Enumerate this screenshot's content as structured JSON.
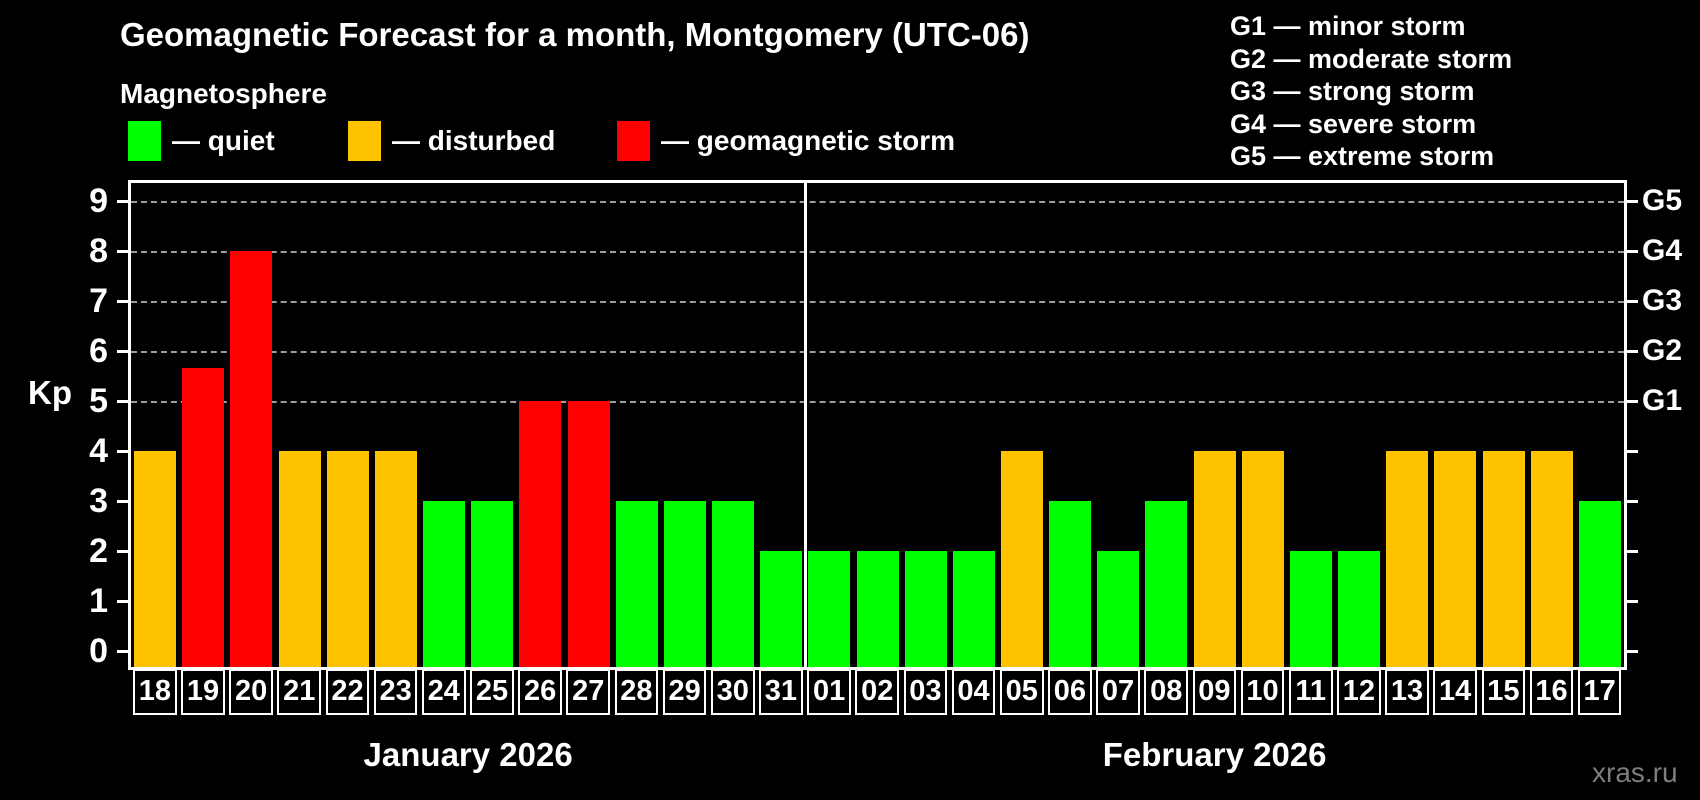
{
  "title": "Geomagnetic Forecast for a month, Montgomery (UTC-06)",
  "subtitle": "Magnetosphere",
  "legend": {
    "items": [
      {
        "key": "quiet",
        "label": "— quiet",
        "color": "#00ff00"
      },
      {
        "key": "disturbed",
        "label": "— disturbed",
        "color": "#ffc200"
      },
      {
        "key": "storm",
        "label": "— geomagnetic storm",
        "color": "#ff0000"
      }
    ]
  },
  "g_legend": [
    "G1 — minor storm",
    "G2 — moderate storm",
    "G3 — strong storm",
    "G4 — severe storm",
    "G5 — extreme storm"
  ],
  "axes": {
    "y_label": "Kp",
    "y_ticks": [
      0,
      1,
      2,
      3,
      4,
      5,
      6,
      7,
      8,
      9
    ],
    "right_labels": [
      {
        "label": "G1",
        "kp": 5
      },
      {
        "label": "G2",
        "kp": 6
      },
      {
        "label": "G3",
        "kp": 7
      },
      {
        "label": "G4",
        "kp": 8
      },
      {
        "label": "G5",
        "kp": 9
      }
    ]
  },
  "watermark": "xras.ru",
  "colors": {
    "background": "#000000",
    "text": "#ffffff",
    "grid": "#9e9e9e",
    "watermark": "#7e7e7e",
    "quiet": "#00ff00",
    "disturbed": "#ffc200",
    "storm": "#ff0000"
  },
  "chart_data": {
    "type": "bar",
    "title": "Geomagnetic Forecast for a month, Montgomery (UTC-06)",
    "xlabel": "",
    "ylabel": "Kp",
    "ylim": [
      0,
      9
    ],
    "grid": "dashed horizontal at Kp 5-9 (G1-G5 storm levels)",
    "legend_position": "top",
    "months": [
      {
        "label": "January 2026",
        "days": 14
      },
      {
        "label": "February 2026",
        "days": 17
      }
    ],
    "categories": [
      "18",
      "19",
      "20",
      "21",
      "22",
      "23",
      "24",
      "25",
      "26",
      "27",
      "28",
      "29",
      "30",
      "31",
      "01",
      "02",
      "03",
      "04",
      "05",
      "06",
      "07",
      "08",
      "09",
      "10",
      "11",
      "12",
      "13",
      "14",
      "15",
      "16",
      "17"
    ],
    "values": [
      4,
      5.67,
      8,
      4,
      4,
      4,
      3,
      3,
      5,
      5,
      3,
      3,
      3,
      2,
      2,
      2,
      2,
      2,
      4,
      3,
      2,
      3,
      4,
      4,
      2,
      2,
      4,
      4,
      4,
      4,
      3
    ],
    "statuses": [
      "disturbed",
      "storm",
      "storm",
      "disturbed",
      "disturbed",
      "disturbed",
      "quiet",
      "quiet",
      "storm",
      "storm",
      "quiet",
      "quiet",
      "quiet",
      "quiet",
      "quiet",
      "quiet",
      "quiet",
      "quiet",
      "disturbed",
      "quiet",
      "quiet",
      "quiet",
      "disturbed",
      "disturbed",
      "quiet",
      "quiet",
      "disturbed",
      "disturbed",
      "disturbed",
      "disturbed",
      "quiet"
    ]
  }
}
